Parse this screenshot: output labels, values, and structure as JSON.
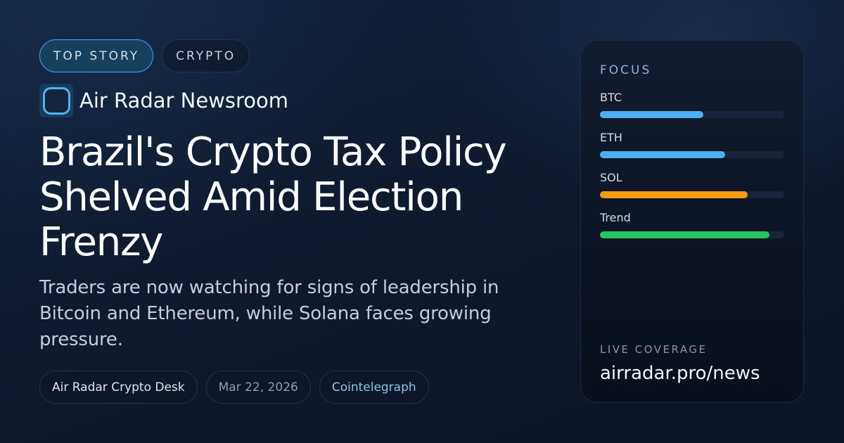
{
  "tags": [
    {
      "label": "TOP STORY",
      "style": "primary"
    },
    {
      "label": "CRYPTO",
      "style": "secondary"
    }
  ],
  "brand": {
    "name": "Air Radar Newsroom",
    "logo_icon": "rounded-square-icon"
  },
  "headline": "Brazil's Crypto Tax Policy Shelved Amid Election Frenzy",
  "summary": "Traders are now watching for signs of leadership in Bitcoin and Ethereum, while Solana faces growing pressure.",
  "meta": {
    "author": "Air Radar Crypto Desk",
    "date": "Mar 22, 2026",
    "source": "Cointelegraph"
  },
  "focus_panel": {
    "title": "FOCUS",
    "bars": [
      {
        "label": "BTC",
        "percent": 56,
        "color": "#4cb0f5"
      },
      {
        "label": "ETH",
        "percent": 68,
        "color": "#4cb0f5"
      },
      {
        "label": "SOL",
        "percent": 80,
        "color": "#f39c12"
      },
      {
        "label": "Trend",
        "percent": 92,
        "color": "#22c55e"
      }
    ],
    "live_label": "LIVE COVERAGE",
    "site": "airradar.pro/news"
  }
}
